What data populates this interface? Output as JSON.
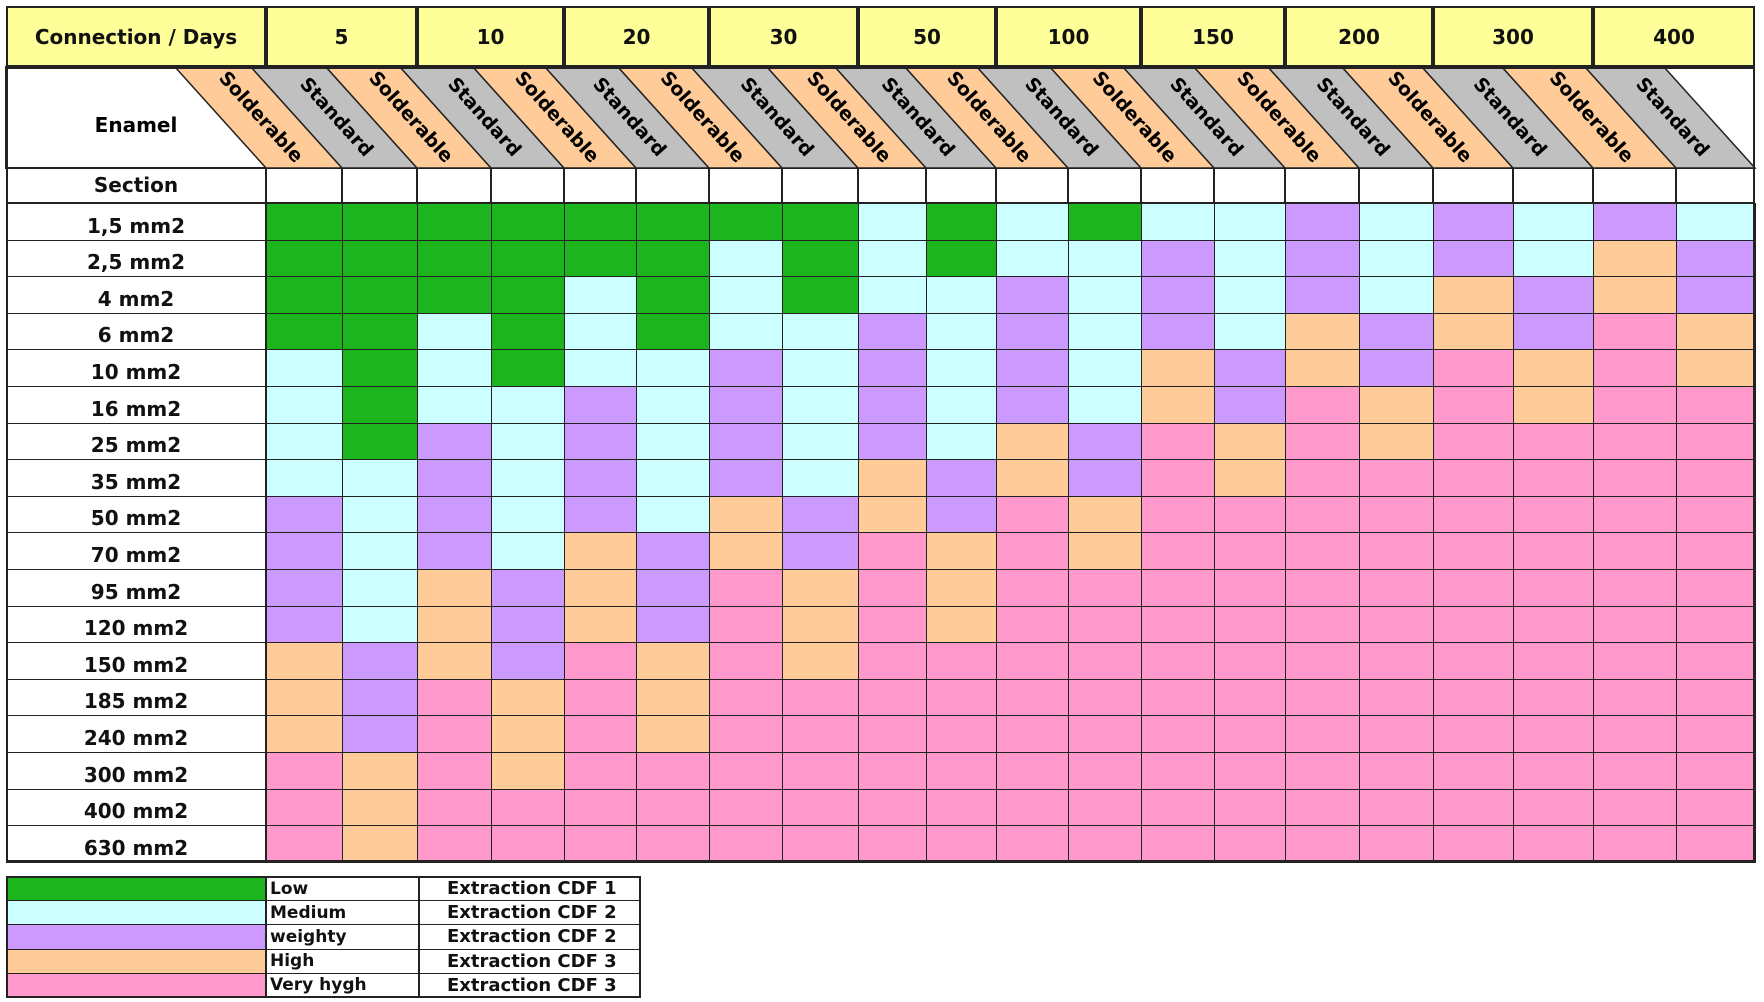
{
  "header": {
    "corner_label": "Connection / Days",
    "days": [
      "5",
      "10",
      "20",
      "30",
      "50",
      "100",
      "150",
      "200",
      "300",
      "400"
    ],
    "enamel_label": "Enamel",
    "enamel_types": [
      "Solderable",
      "Standard"
    ],
    "section_label": "Section"
  },
  "colors": {
    "L": "#1db51d",
    "M": "#ccffff",
    "W": "#cc99ff",
    "H": "#ffcc99",
    "V": "#ff99cc",
    "solderable_header": "#ffcc99",
    "standard_header": "#c0c0c0",
    "days_header": "#ffff99"
  },
  "rows": [
    {
      "section": "1,5 mm2",
      "levels": "LLLLLLLLMLMLMMWMWMWM"
    },
    {
      "section": "2,5 mm2",
      "levels": "LLLLLLMLMLMMWMWMWMHW"
    },
    {
      "section": "4 mm2",
      "levels": "LLLLMLMLMMWMWMWMHWHW"
    },
    {
      "section": "6 mm2",
      "levels": "LLMLMLMMWMWMWMHWHWVH"
    },
    {
      "section": "10 mm2",
      "levels": "MLMLMMWMWMWMHWHWVHVH"
    },
    {
      "section": "16 mm2",
      "levels": "MLMMWMWMWMWMHWVHVHVV"
    },
    {
      "section": "25 mm2",
      "levels": "MLWMWMWMWMHWVHVHVVVV"
    },
    {
      "section": "35 mm2",
      "levels": "MMWMWMWMHWHWVHVVVVVV"
    },
    {
      "section": "50 mm2",
      "levels": "WMWMWMHWHWVHVVVVVVVV"
    },
    {
      "section": "70 mm2",
      "levels": "WMWMHWHWVHVHVVVVVVVV"
    },
    {
      "section": "95 mm2",
      "levels": "WMHWHWVHVHVVVVVVVVVV"
    },
    {
      "section": "120 mm2",
      "levels": "WMHWHWVHVHVVVVVVVVVV"
    },
    {
      "section": "150 mm2",
      "levels": "HWHWVHVHVVVVVVVVVVVV"
    },
    {
      "section": "185 mm2",
      "levels": "HWVHVHVVVVVVVVVVVVVV"
    },
    {
      "section": "240 mm2",
      "levels": "HWVHVHVVVVVVVVVVVVVV"
    },
    {
      "section": "300 mm2",
      "levels": "VHVHVVVVVVVVVVVVVVVV"
    },
    {
      "section": "400 mm2",
      "levels": "VHVVVVVVVVVVVVVVVVVV"
    },
    {
      "section": "630 mm2",
      "levels": "VHVVVVVVVVVVVVVVVVVV"
    }
  ],
  "legend": [
    {
      "key": "L",
      "label": "Low",
      "cdf": "Extraction CDF 1"
    },
    {
      "key": "M",
      "label": "Medium",
      "cdf": "Extraction CDF 2"
    },
    {
      "key": "W",
      "label": "weighty",
      "cdf": "Extraction CDF 2"
    },
    {
      "key": "H",
      "label": "High",
      "cdf": "Extraction CDF 3"
    },
    {
      "key": "V",
      "label": "Very hygh",
      "cdf": "Extraction CDF 3"
    }
  ]
}
